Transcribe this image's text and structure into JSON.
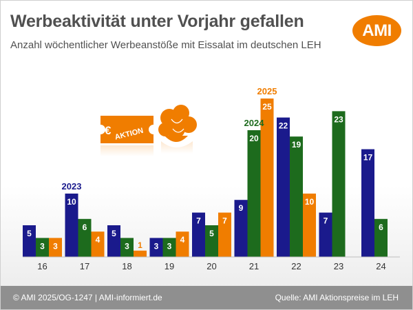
{
  "title": "Werbeaktivität unter Vorjahr gefallen",
  "subtitle": "Anzahl wöchentlicher Werbeanstöße mit Eissalat im deutschen LEH",
  "logo_text": "AMI",
  "badge_text": "AKTION",
  "badge_symbol": "€",
  "icons": [
    "aktion-ticket-icon",
    "lettuce-icon"
  ],
  "footer": {
    "left": "© AMI 2025/OG-1247 | AMI-informiert.de",
    "right": "Quelle: AMI Aktionspreise im LEH"
  },
  "colors": {
    "series_2023": "#1a1a8c",
    "series_2024": "#1d6b1d",
    "series_2025": "#f07d00",
    "brand": "#f07d00",
    "footer_bg": "#8f8f8f"
  },
  "chart_data": {
    "type": "bar",
    "categories": [
      "16",
      "17",
      "18",
      "19",
      "20",
      "21",
      "22",
      "23",
      "24"
    ],
    "series": [
      {
        "name": "2023",
        "values": [
          5,
          10,
          5,
          3,
          7,
          9,
          22,
          7,
          17
        ],
        "label_at": "17"
      },
      {
        "name": "2024",
        "values": [
          3,
          6,
          3,
          3,
          5,
          20,
          19,
          23,
          6
        ],
        "label_at": "21"
      },
      {
        "name": "2025",
        "values": [
          3,
          4,
          1,
          4,
          7,
          25,
          10,
          null,
          null
        ],
        "label_at": "21"
      }
    ],
    "title": "Werbeaktivität unter Vorjahr gefallen",
    "xlabel": "",
    "ylabel": "",
    "ylim": [
      0,
      25
    ],
    "grid": false,
    "legend": "inline series labels above bars"
  }
}
